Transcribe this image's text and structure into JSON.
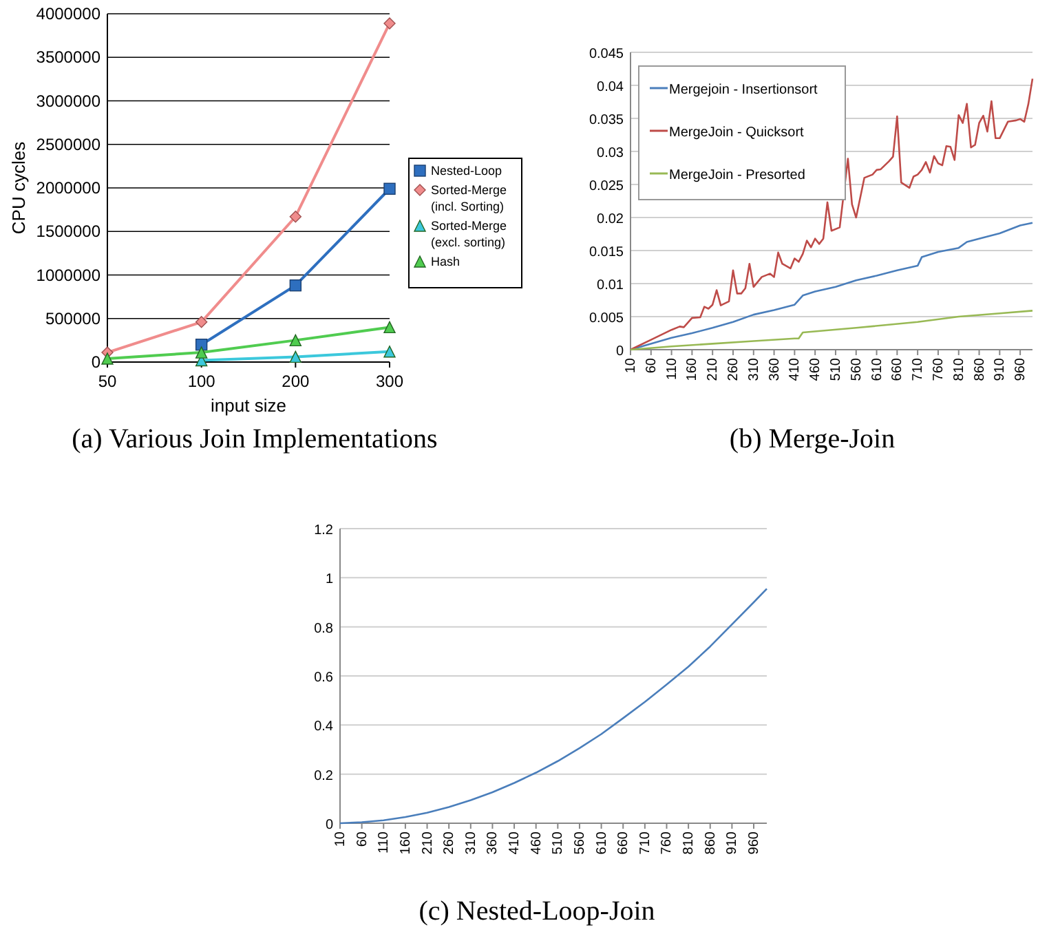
{
  "chart_data": [
    {
      "type": "line",
      "title": "(a) Various Join Implementations",
      "xlabel": "input size",
      "ylabel": "CPU cycles",
      "categories": [
        "50",
        "100",
        "200",
        "300"
      ],
      "ylim": [
        0,
        4000000
      ],
      "yticks": [
        0,
        500000,
        1000000,
        1500000,
        2000000,
        2500000,
        3000000,
        3500000,
        4000000
      ],
      "grid": "y",
      "legend": "right",
      "series": [
        {
          "name": "Nested-Loop",
          "color": "#2e6fbf",
          "marker": "square",
          "values": [
            null,
            200000,
            880000,
            1990000
          ]
        },
        {
          "name": "Sorted-Merge (incl. Sorting)",
          "color": "#f08c8c",
          "marker": "diamond",
          "values": [
            110000,
            460000,
            1670000,
            3890000
          ]
        },
        {
          "name": "Sorted-Merge (excl. sorting)",
          "color": "#3cc8dc",
          "marker": "triangle",
          "values": [
            null,
            20000,
            60000,
            120000
          ]
        },
        {
          "name": "Hash",
          "color": "#50cc50",
          "marker": "triangle",
          "values": [
            40000,
            110000,
            250000,
            400000
          ]
        }
      ]
    },
    {
      "type": "line",
      "title": "(b) Merge-Join",
      "xlim": [
        10,
        990
      ],
      "xticks": [
        10,
        60,
        110,
        160,
        210,
        260,
        310,
        360,
        410,
        460,
        510,
        560,
        610,
        660,
        710,
        760,
        810,
        860,
        910,
        960
      ],
      "ylim": [
        0,
        0.045
      ],
      "yticks": [
        0,
        0.005,
        0.01,
        0.015,
        0.02,
        0.025,
        0.03,
        0.035,
        0.04,
        0.045
      ],
      "grid": "y",
      "legend": "top left",
      "series": [
        {
          "name": "Mergejoin - Insertionsort",
          "color": "#4a7ebb",
          "x": [
            10,
            110,
            160,
            210,
            260,
            310,
            360,
            410,
            430,
            460,
            510,
            560,
            610,
            660,
            710,
            720,
            760,
            810,
            830,
            860,
            910,
            960,
            990
          ],
          "values": [
            0,
            0.0018,
            0.0025,
            0.0033,
            0.0042,
            0.0053,
            0.006,
            0.0068,
            0.0082,
            0.0088,
            0.0095,
            0.0105,
            0.0112,
            0.012,
            0.0127,
            0.014,
            0.0148,
            0.0154,
            0.0163,
            0.0168,
            0.0176,
            0.0188,
            0.0192
          ]
        },
        {
          "name": "MergeJoin - Quicksort",
          "color": "#be4b48",
          "x": [
            10,
            60,
            110,
            130,
            140,
            160,
            180,
            190,
            200,
            210,
            220,
            230,
            250,
            260,
            270,
            280,
            290,
            300,
            310,
            330,
            350,
            360,
            370,
            380,
            400,
            410,
            420,
            430,
            440,
            450,
            460,
            470,
            480,
            490,
            500,
            520,
            540,
            550,
            560,
            580,
            600,
            610,
            620,
            640,
            650,
            660,
            670,
            690,
            700,
            710,
            720,
            730,
            740,
            750,
            760,
            770,
            780,
            790,
            800,
            810,
            820,
            830,
            840,
            850,
            860,
            870,
            880,
            890,
            900,
            910,
            930,
            950,
            960,
            970,
            980,
            990
          ],
          "values": [
            0,
            0.0015,
            0.003,
            0.0035,
            0.0034,
            0.0048,
            0.0049,
            0.0065,
            0.0062,
            0.0068,
            0.009,
            0.0067,
            0.0073,
            0.012,
            0.0085,
            0.0085,
            0.0093,
            0.013,
            0.0095,
            0.011,
            0.0115,
            0.011,
            0.0147,
            0.013,
            0.0123,
            0.0138,
            0.0133,
            0.0145,
            0.0165,
            0.0155,
            0.0168,
            0.016,
            0.0168,
            0.0223,
            0.018,
            0.0185,
            0.0289,
            0.022,
            0.02,
            0.026,
            0.0265,
            0.0272,
            0.0273,
            0.0285,
            0.0292,
            0.0353,
            0.0253,
            0.0245,
            0.0262,
            0.0265,
            0.0272,
            0.0284,
            0.0268,
            0.0293,
            0.0282,
            0.0279,
            0.0308,
            0.0307,
            0.0287,
            0.0355,
            0.0343,
            0.0372,
            0.0306,
            0.031,
            0.0343,
            0.0354,
            0.033,
            0.0376,
            0.032,
            0.032,
            0.0345,
            0.0347,
            0.0349,
            0.0345,
            0.0372,
            0.041
          ]
        },
        {
          "name": "MergeJoin - Presorted",
          "color": "#98b954",
          "x": [
            10,
            110,
            210,
            310,
            410,
            420,
            430,
            560,
            710,
            810,
            910,
            990
          ],
          "values": [
            0,
            0.0005,
            0.0009,
            0.0013,
            0.0017,
            0.0017,
            0.0026,
            0.0033,
            0.0042,
            0.005,
            0.0055,
            0.0059
          ]
        }
      ]
    },
    {
      "type": "line",
      "title": "(c) Nested-Loop-Join",
      "xlim": [
        10,
        990
      ],
      "xticks": [
        10,
        60,
        110,
        160,
        210,
        260,
        310,
        360,
        410,
        460,
        510,
        560,
        610,
        660,
        710,
        760,
        810,
        860,
        910,
        960
      ],
      "ylim": [
        0,
        1.2
      ],
      "yticks": [
        0,
        0.2,
        0.4,
        0.6,
        0.8,
        1,
        1.2
      ],
      "grid": "y",
      "series": [
        {
          "color": "#4a7ebb",
          "x": [
            10,
            60,
            110,
            160,
            210,
            260,
            310,
            360,
            410,
            460,
            510,
            560,
            610,
            660,
            710,
            760,
            810,
            860,
            910,
            960,
            990
          ],
          "values": [
            0,
            0.004,
            0.012,
            0.025,
            0.043,
            0.066,
            0.094,
            0.126,
            0.164,
            0.206,
            0.253,
            0.306,
            0.363,
            0.428,
            0.494,
            0.565,
            0.638,
            0.72,
            0.81,
            0.9,
            0.955
          ]
        }
      ]
    }
  ]
}
